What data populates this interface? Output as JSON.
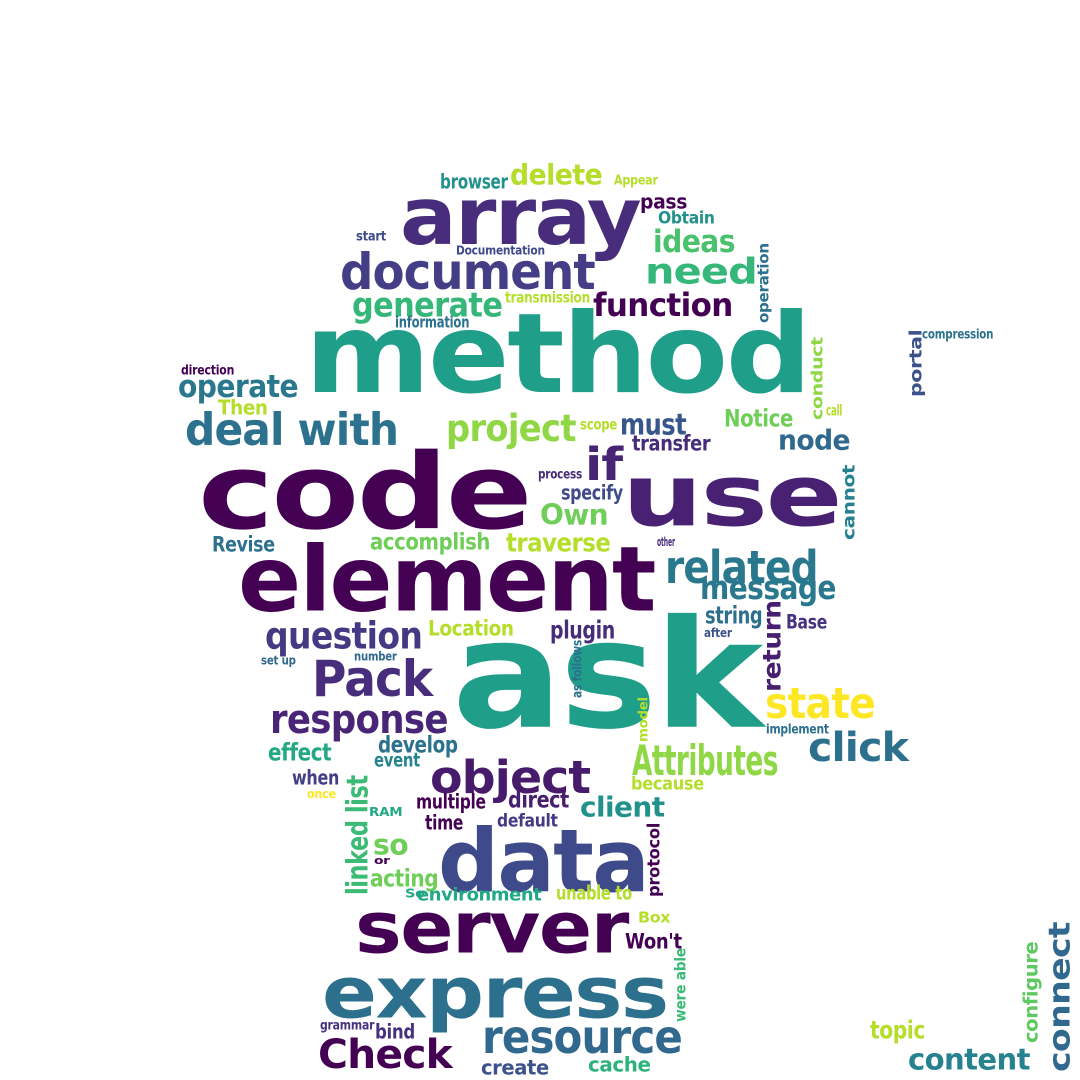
{
  "words": [
    {
      "text": "ask",
      "color": "#1f9e89"
    },
    {
      "text": "code",
      "color": "#440154"
    },
    {
      "text": "method",
      "color": "#1f9e89"
    },
    {
      "text": "use",
      "color": "#482173"
    },
    {
      "text": "element",
      "color": "#440154"
    },
    {
      "text": "data",
      "color": "#3e4a89"
    },
    {
      "text": "server",
      "color": "#440154"
    },
    {
      "text": "express",
      "color": "#2d708e"
    },
    {
      "text": "array",
      "color": "#472d7b"
    },
    {
      "text": "document",
      "color": "#433e85"
    },
    {
      "text": "resource",
      "color": "#31688e"
    },
    {
      "text": "Check",
      "color": "#440154"
    },
    {
      "text": "object",
      "color": "#481a6c"
    },
    {
      "text": "response",
      "color": "#482576"
    },
    {
      "text": "Pack",
      "color": "#472d7b"
    },
    {
      "text": "Attributes",
      "color": "#8fd744"
    },
    {
      "text": "click",
      "color": "#2d708e"
    },
    {
      "text": "deal with",
      "color": "#2c728e"
    },
    {
      "text": "related",
      "color": "#2a788e"
    },
    {
      "text": "question",
      "color": "#443a83"
    },
    {
      "text": "state",
      "color": "#fde725"
    },
    {
      "text": "function",
      "color": "#440154"
    },
    {
      "text": "need",
      "color": "#35b779"
    },
    {
      "text": "generate",
      "color": "#35b779"
    },
    {
      "text": "project",
      "color": "#8fd744"
    },
    {
      "text": "message",
      "color": "#2a788e"
    },
    {
      "text": "if",
      "color": "#482475"
    },
    {
      "text": "content",
      "color": "#26828e"
    },
    {
      "text": "connect",
      "color": "#31688e"
    },
    {
      "text": "linked list",
      "color": "#3bbb75"
    },
    {
      "text": "operate",
      "color": "#2a788e"
    },
    {
      "text": "delete",
      "color": "#b5de2b"
    },
    {
      "text": "ideas",
      "color": "#4ac16d"
    },
    {
      "text": "node",
      "color": "#31688e"
    },
    {
      "text": "client",
      "color": "#21918c"
    },
    {
      "text": "return",
      "color": "#481f70"
    },
    {
      "text": "must",
      "color": "#39568c"
    },
    {
      "text": "Own",
      "color": "#6ece58"
    },
    {
      "text": "traverse",
      "color": "#b5de2b"
    },
    {
      "text": "accomplish",
      "color": "#6ece58"
    },
    {
      "text": "Notice",
      "color": "#6ece58"
    },
    {
      "text": "transfer",
      "color": "#472c7a"
    },
    {
      "text": "develop",
      "color": "#2c728e"
    },
    {
      "text": "plugin",
      "color": "#472c7a"
    },
    {
      "text": "Location",
      "color": "#b5de2b"
    },
    {
      "text": "direct",
      "color": "#481f70"
    },
    {
      "text": "effect",
      "color": "#22a884"
    },
    {
      "text": "string",
      "color": "#2d708e"
    },
    {
      "text": "acting",
      "color": "#6ece58"
    },
    {
      "text": "so",
      "color": "#6ece58"
    },
    {
      "text": "multiple",
      "color": "#440154"
    },
    {
      "text": "when",
      "color": "#433e85"
    },
    {
      "text": "Revise",
      "color": "#2c728e"
    },
    {
      "text": "specify",
      "color": "#3e4a89"
    },
    {
      "text": "time",
      "color": "#440154"
    },
    {
      "text": "default",
      "color": "#443a83"
    },
    {
      "text": "event",
      "color": "#25858e"
    },
    {
      "text": "environment",
      "color": "#22a884"
    },
    {
      "text": "unable to",
      "color": "#b5de2b"
    },
    {
      "text": "cache",
      "color": "#2db27d"
    },
    {
      "text": "create",
      "color": "#3b528b"
    },
    {
      "text": "cannot",
      "color": "#26828e"
    },
    {
      "text": "conduct",
      "color": "#8fd744"
    },
    {
      "text": "topic",
      "color": "#b5de2b"
    },
    {
      "text": "configure",
      "color": "#5ec962"
    },
    {
      "text": "portal",
      "color": "#3b528b"
    },
    {
      "text": "operation",
      "color": "#2c728e"
    },
    {
      "text": "Won't",
      "color": "#440154"
    },
    {
      "text": "bind",
      "color": "#46327e"
    },
    {
      "text": "protocol",
      "color": "#440154"
    },
    {
      "text": "browser",
      "color": "#21918c"
    },
    {
      "text": "pass",
      "color": "#440154"
    },
    {
      "text": "Obtain",
      "color": "#21918c"
    },
    {
      "text": "Base",
      "color": "#46327e"
    },
    {
      "text": "Then",
      "color": "#b5de2b"
    },
    {
      "text": "because",
      "color": "#b5de2b"
    },
    {
      "text": "Box",
      "color": "#b5de2b"
    },
    {
      "text": "were able",
      "color": "#3bbb75"
    },
    {
      "text": "start",
      "color": "#3e4a89"
    },
    {
      "text": "Documentation",
      "color": "#3e4a89"
    },
    {
      "text": "information",
      "color": "#2c728e"
    },
    {
      "text": "transmission",
      "color": "#b5de2b"
    },
    {
      "text": "direction",
      "color": "#440154"
    },
    {
      "text": "scope",
      "color": "#b5de2b"
    },
    {
      "text": "call",
      "color": "#b5de2b"
    },
    {
      "text": "process",
      "color": "#472c7a"
    },
    {
      "text": "other",
      "color": "#472c7a"
    },
    {
      "text": "after",
      "color": "#3b528b"
    },
    {
      "text": "as follows",
      "color": "#2c728e"
    },
    {
      "text": "model",
      "color": "#b5de2b"
    },
    {
      "text": "implement",
      "color": "#2d708e"
    },
    {
      "text": "number",
      "color": "#31688e"
    },
    {
      "text": "set up",
      "color": "#31688e"
    },
    {
      "text": "once",
      "color": "#fde725"
    },
    {
      "text": "RAM",
      "color": "#22a884"
    },
    {
      "text": "or",
      "color": "#440154"
    },
    {
      "text": "So",
      "color": "#22a884"
    },
    {
      "text": "grammar",
      "color": "#46327e"
    },
    {
      "text": "Appear",
      "color": "#b5de2b"
    },
    {
      "text": "compression",
      "color": "#2c728e"
    }
  ]
}
